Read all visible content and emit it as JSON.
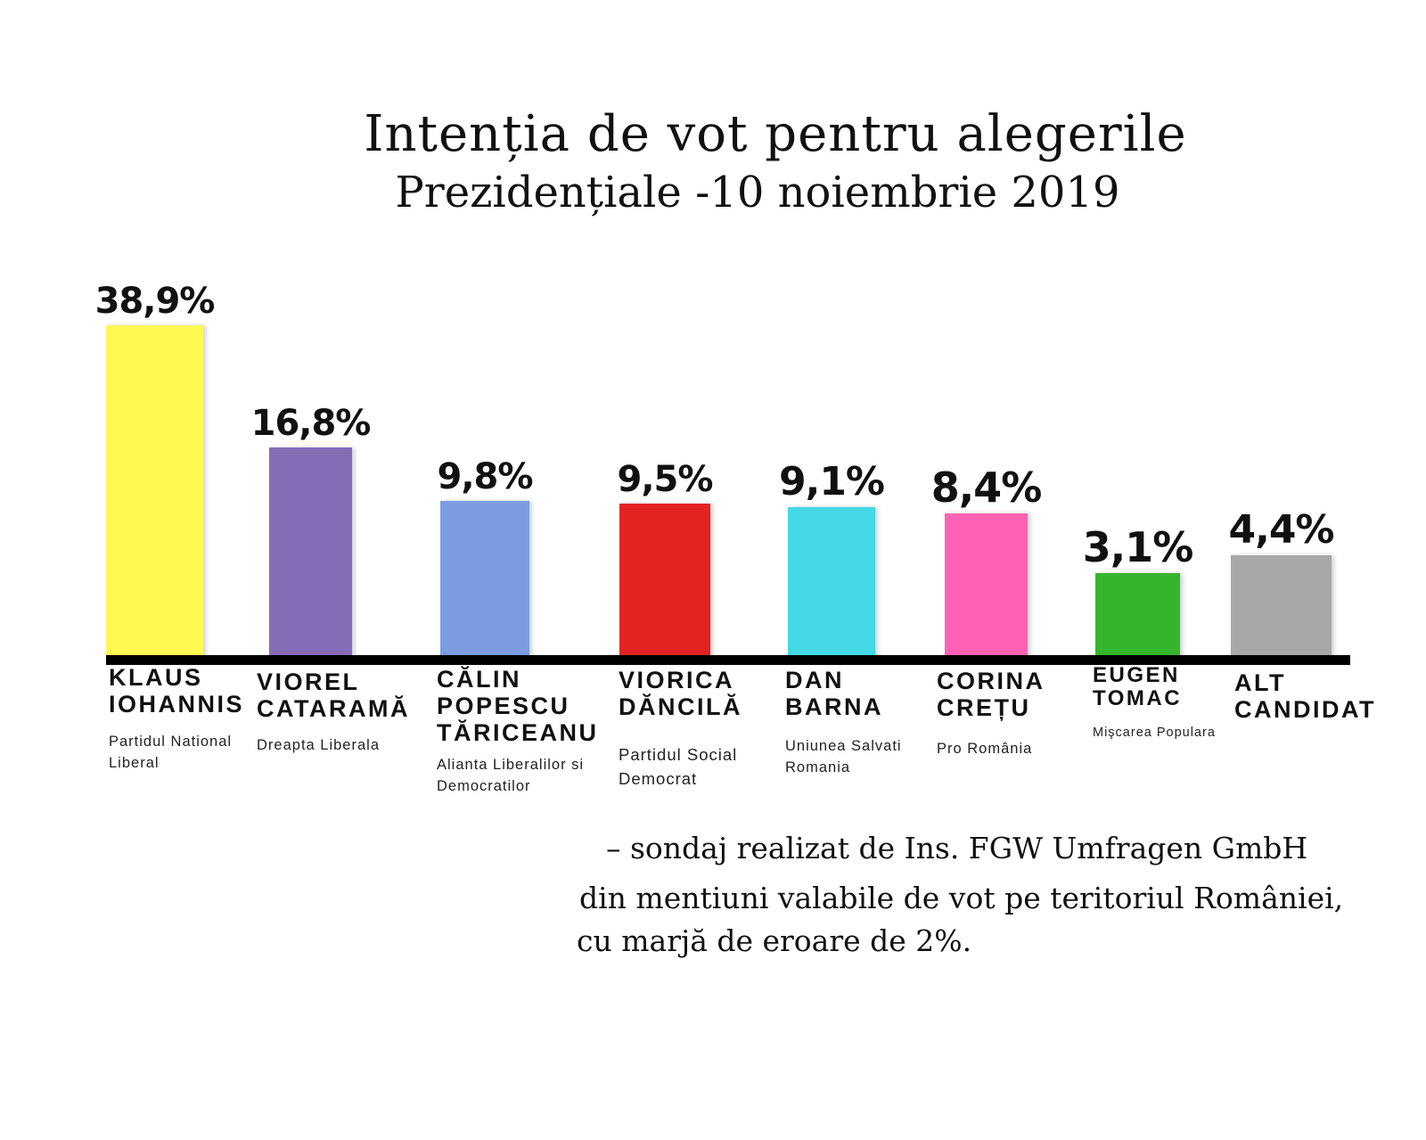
{
  "title": "Intenția de vot pentru alegerile",
  "subtitle": "Prezidențiale -10 noiembrie 2019",
  "note": {
    "line1": "– sondaj realizat de Ins. FGW Umfragen GmbH",
    "line2": "din mentiuni valabile de vot pe teritoriul României,",
    "line3": "cu marjă de eroare de 2%."
  },
  "chart_data": {
    "type": "bar",
    "title": "Intenția de vot pentru alegerile Prezidențiale -10 noiembrie 2019",
    "xlabel": "",
    "ylabel": "",
    "unit": "%",
    "grid": false,
    "legend": "none",
    "categories": [
      "KLAUS IOHANNIS",
      "VIOREL CATARAMĂ",
      "CĂLIN POPESCU TĂRICEANU",
      "VIORICA DĂNCILĂ",
      "DAN BARNA",
      "CORINA CREȚU",
      "EUGEN TOMAC",
      "ALT CANDIDAT"
    ],
    "values": [
      38.9,
      16.8,
      9.8,
      9.5,
      9.1,
      8.4,
      3.1,
      4.4
    ],
    "labels": [
      "38,9%",
      "16,8%",
      "9,8%",
      "9,5%",
      "9,1%",
      "8,4%",
      "3,1%",
      "4,4%"
    ],
    "bars": [
      {
        "name_lines": "KLAUS\nIOHANNIS",
        "party": "Partidul National\nLiberal",
        "value": 38.9,
        "label": "38,9%",
        "color": "#fff952"
      },
      {
        "name_lines": "VIOREL\nCATARAMĂ",
        "party": "Dreapta Liberala",
        "value": 16.8,
        "label": "16,8%",
        "color": "#876cb8"
      },
      {
        "name_lines": "CĂLIN\nPOPESCU\nTĂRICEANU",
        "party": "Alianta Liberalilor si\nDemocratilor",
        "value": 9.8,
        "label": "9,8%",
        "color": "#7a9de2"
      },
      {
        "name_lines": "VIORICA\nDĂNCILĂ",
        "party": "Partidul Social\nDemocrat",
        "value": 9.5,
        "label": "9,5%",
        "color": "#e32322"
      },
      {
        "name_lines": "DAN\nBARNA",
        "party": "Uniunea Salvati\nRomania",
        "value": 9.1,
        "label": "9,1%",
        "color": "#43d8e4"
      },
      {
        "name_lines": "CORINA\nCREȚU",
        "party": "Pro România",
        "value": 8.4,
        "label": "8,4%",
        "color": "#ff62b4"
      },
      {
        "name_lines": "EUGEN\nTOMAC",
        "party": "Mişcarea Populara",
        "value": 3.1,
        "label": "3,1%",
        "color": "#33b52c"
      },
      {
        "name_lines": "ALT\nCANDIDAT",
        "party": "",
        "value": 4.4,
        "label": "4,4%",
        "color": "#a8a8a8"
      }
    ]
  }
}
